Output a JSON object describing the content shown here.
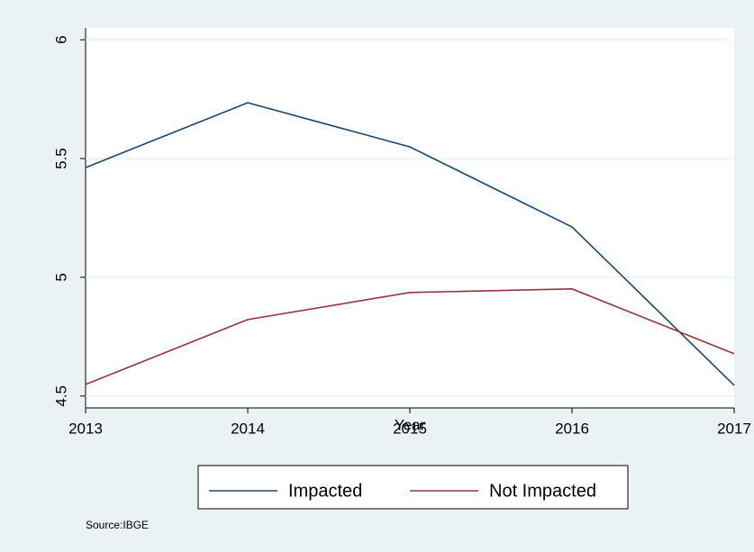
{
  "chart_data": {
    "type": "line",
    "x_label": "Year",
    "x": [
      2013,
      2014,
      2015,
      2016,
      2017
    ],
    "series": [
      {
        "name": "Impacted",
        "color": "#1a476f",
        "values": [
          5.462,
          5.735,
          5.549,
          5.212,
          4.545
        ]
      },
      {
        "name": "Not Impacted",
        "color": "#90353b",
        "values": [
          4.549,
          4.822,
          4.936,
          4.951,
          4.678
        ]
      }
    ],
    "xlim": [
      2013,
      2017
    ],
    "xticks": [
      2013,
      2014,
      2015,
      2016,
      2017
    ],
    "ylim": [
      4.45,
      6.05
    ],
    "yticks": [
      4.5,
      5,
      5.5,
      6
    ],
    "grid": true,
    "legend": "bottom",
    "note": "Source:IBGE"
  }
}
